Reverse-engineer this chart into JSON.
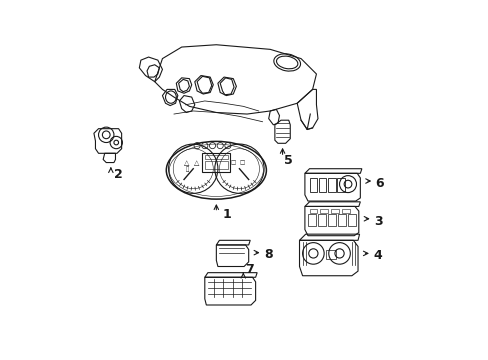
{
  "background_color": "#ffffff",
  "line_color": "#1a1a1a",
  "line_width": 0.8,
  "figsize": [
    4.89,
    3.6
  ],
  "dpi": 100
}
